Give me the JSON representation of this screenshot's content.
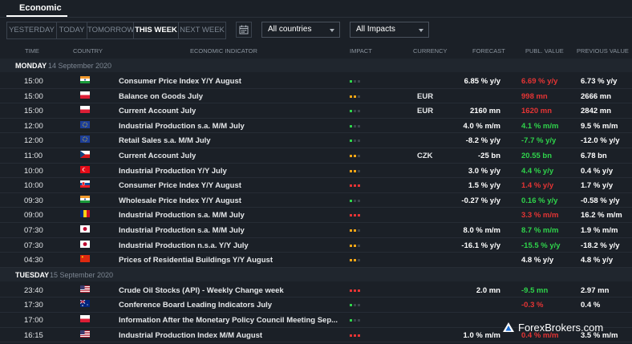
{
  "tab": "Economic",
  "periods": [
    "YESTERDAY",
    "TODAY",
    "TOMORROW",
    "THIS WEEK",
    "NEXT WEEK"
  ],
  "active_period": "THIS WEEK",
  "countries_select": "All countries",
  "impacts_select": "All Impacts",
  "columns": {
    "time": "TIME",
    "country": "COUNTRY",
    "indicator": "ECONOMIC INDICATOR",
    "impact": "IMPACT",
    "currency": "CURRENCY",
    "forecast": "FORECAST",
    "publ": "PUBL. VALUE",
    "prev": "PREVIOUS VALUE"
  },
  "days": [
    {
      "name": "MONDAY",
      "date": "14 September 2020",
      "rows": [
        {
          "time": "15:00",
          "country": "India",
          "flag": "india",
          "indicator": "Consumer Price Index Y/Y August",
          "impact": "low",
          "currency": "",
          "forecast": "6.85 % y/y",
          "publ": "6.69 % y/y",
          "publ_tone": "neg",
          "prev": "6.73 % y/y"
        },
        {
          "time": "15:00",
          "country": "Poland",
          "flag": "poland",
          "indicator": "Balance on Goods July",
          "impact": "medium",
          "currency": "EUR",
          "forecast": "",
          "publ": "998 mn",
          "publ_tone": "neg",
          "prev": "2666 mn"
        },
        {
          "time": "15:00",
          "country": "Poland",
          "flag": "poland",
          "indicator": "Current Account July",
          "impact": "low",
          "currency": "EUR",
          "forecast": "2160 mn",
          "publ": "1620 mn",
          "publ_tone": "neg",
          "prev": "2842 mn"
        },
        {
          "time": "12:00",
          "country": "Euro Area",
          "flag": "eu",
          "indicator": "Industrial Production s.a. M/M July",
          "impact": "low",
          "currency": "",
          "forecast": "4.0 % m/m",
          "publ": "4.1 % m/m",
          "publ_tone": "pos",
          "prev": "9.5 % m/m"
        },
        {
          "time": "12:00",
          "country": "Euro Area",
          "flag": "eu",
          "indicator": "Retail Sales s.a. M/M July",
          "impact": "low",
          "currency": "",
          "forecast": "-8.2 % y/y",
          "publ": "-7.7 % y/y",
          "publ_tone": "pos",
          "prev": "-12.0 % y/y"
        },
        {
          "time": "11:00",
          "country": "Czech Republic",
          "flag": "czech",
          "indicator": "Current Account July",
          "impact": "medium",
          "currency": "CZK",
          "forecast": "-25 bn",
          "publ": "20.55 bn",
          "publ_tone": "pos",
          "prev": "6.78 bn"
        },
        {
          "time": "10:00",
          "country": "Turkey",
          "flag": "turkey",
          "indicator": "Industrial Production Y/Y July",
          "impact": "medium",
          "currency": "",
          "forecast": "3.0 % y/y",
          "publ": "4.4 % y/y",
          "publ_tone": "pos",
          "prev": "0.4 % y/y"
        },
        {
          "time": "10:00",
          "country": "Slovakia",
          "flag": "slovakia",
          "indicator": "Consumer Price Index Y/Y August",
          "impact": "high",
          "currency": "",
          "forecast": "1.5 % y/y",
          "publ": "1.4 % y/y",
          "publ_tone": "neg",
          "prev": "1.7 % y/y"
        },
        {
          "time": "09:30",
          "country": "India",
          "flag": "india",
          "indicator": "Wholesale Price Index Y/Y August",
          "impact": "low",
          "currency": "",
          "forecast": "-0.27 % y/y",
          "publ": "0.16 % y/y",
          "publ_tone": "pos",
          "prev": "-0.58 % y/y"
        },
        {
          "time": "09:00",
          "country": "Romania",
          "flag": "romania",
          "indicator": "Industrial Production s.a. M/M July",
          "impact": "high",
          "currency": "",
          "forecast": "",
          "publ": "3.3 % m/m",
          "publ_tone": "neg",
          "prev": "16.2 % m/m"
        },
        {
          "time": "07:30",
          "country": "Japan",
          "flag": "japan",
          "indicator": "Industrial Production s.a. M/M July",
          "impact": "medium",
          "currency": "",
          "forecast": "8.0 % m/m",
          "publ": "8.7 % m/m",
          "publ_tone": "pos",
          "prev": "1.9 % m/m"
        },
        {
          "time": "07:30",
          "country": "Japan",
          "flag": "japan",
          "indicator": "Industrial Production n.s.a. Y/Y July",
          "impact": "medium",
          "currency": "",
          "forecast": "-16.1 % y/y",
          "publ": "-15.5 % y/y",
          "publ_tone": "pos",
          "prev": "-18.2 % y/y"
        },
        {
          "time": "04:30",
          "country": "China",
          "flag": "china",
          "indicator": "Prices of Residential Buildings Y/Y August",
          "impact": "medium",
          "currency": "",
          "forecast": "",
          "publ": "4.8 % y/y",
          "publ_tone": "neu",
          "prev": "4.8 % y/y"
        }
      ]
    },
    {
      "name": "TUESDAY",
      "date": "15 September 2020",
      "rows": [
        {
          "time": "23:40",
          "country": "United States",
          "flag": "us",
          "indicator": "Crude Oil Stocks (API) - Weekly Change week",
          "impact": "high",
          "currency": "",
          "forecast": "2.0 mn",
          "publ": "-9.5 mn",
          "publ_tone": "pos",
          "prev": "2.97 mn"
        },
        {
          "time": "17:30",
          "country": "Australia",
          "flag": "australia",
          "indicator": "Conference Board Leading Indicators July",
          "impact": "low",
          "currency": "",
          "forecast": "",
          "publ": "-0.3 %",
          "publ_tone": "neg",
          "prev": "0.4 %"
        },
        {
          "time": "17:00",
          "country": "Poland",
          "flag": "poland",
          "indicator": "Information After the Monetary Policy Council Meeting Sep...",
          "impact": "low",
          "currency": "",
          "forecast": "",
          "publ": "",
          "publ_tone": "neu",
          "prev": ""
        },
        {
          "time": "16:15",
          "country": "United States",
          "flag": "us",
          "indicator": "Industrial Production Index M/M August",
          "impact": "high",
          "currency": "",
          "forecast": "1.0 % m/m",
          "publ": "0.4 % m/m",
          "publ_tone": "neg",
          "prev": "3.5 % m/m"
        }
      ]
    }
  ],
  "watermark": "ForexBrokers.com",
  "colors": {
    "background": "#1b2027",
    "positive": "#2fd44b",
    "negative": "#e53434",
    "impact_low": "#2fd44b",
    "impact_medium": "#f2a516",
    "impact_high": "#e53434"
  }
}
